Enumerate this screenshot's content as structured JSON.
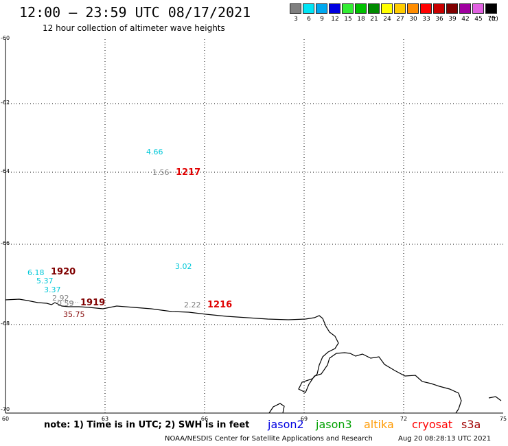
{
  "header": {
    "title": "12:00 – 23:59 UTC 08/17/2021",
    "subtitle": "12 hour collection of altimeter wave heights"
  },
  "legend": {
    "unit": "(ft)",
    "items": [
      {
        "label": "3",
        "color": "#808080"
      },
      {
        "label": "6",
        "color": "#00e5f5"
      },
      {
        "label": "9",
        "color": "#00a8f0"
      },
      {
        "label": "12",
        "color": "#0000e0"
      },
      {
        "label": "15",
        "color": "#33ee33"
      },
      {
        "label": "18",
        "color": "#00c000"
      },
      {
        "label": "21",
        "color": "#008a00"
      },
      {
        "label": "24",
        "color": "#ffff00"
      },
      {
        "label": "27",
        "color": "#ffcc00"
      },
      {
        "label": "30",
        "color": "#ff8c00"
      },
      {
        "label": "33",
        "color": "#ff0000"
      },
      {
        "label": "36",
        "color": "#c80000"
      },
      {
        "label": "39",
        "color": "#800000"
      },
      {
        "label": "42",
        "color": "#a000a0"
      },
      {
        "label": "45",
        "color": "#e060e0"
      },
      {
        "label": "70",
        "color": "#000000"
      }
    ]
  },
  "axes": {
    "lat_labels": [
      "-60",
      "-62",
      "-64",
      "-66",
      "-68",
      "-70"
    ],
    "lon_labels": [
      "60",
      "63",
      "66",
      "69",
      "72",
      "75"
    ]
  },
  "observations": {
    "wave_heights": [
      {
        "text": "4.66",
        "color": "#00c8d8"
      },
      {
        "text": "1.56",
        "color": "#808080"
      },
      {
        "text": "3.02",
        "color": "#00c8d8"
      },
      {
        "text": "6.18",
        "color": "#00c8d8"
      },
      {
        "text": "5.37",
        "color": "#00c8d8"
      },
      {
        "text": "3.37",
        "color": "#00c8d8"
      },
      {
        "text": "2.92",
        "color": "#808080"
      },
      {
        "text": "0.59",
        "color": "#808080"
      },
      {
        "text": "35.75",
        "color": "#800000"
      },
      {
        "text": "2.22",
        "color": "#808080"
      }
    ],
    "times": [
      {
        "text": "1217",
        "color": "#e00000"
      },
      {
        "text": "1920",
        "color": "#800000"
      },
      {
        "text": "1919",
        "color": "#800000"
      },
      {
        "text": "1216",
        "color": "#e00000"
      }
    ]
  },
  "footer": {
    "note": "note: 1) Time is in UTC; 2) SWH is in feet",
    "satellites": [
      {
        "name": "jason2",
        "color": "#0000e0"
      },
      {
        "name": "jason3",
        "color": "#00a000"
      },
      {
        "name": "altika",
        "color": "#ff9900"
      },
      {
        "name": "cryosat",
        "color": "#ff0000"
      },
      {
        "name": "s3a",
        "color": "#a00000"
      }
    ],
    "credit": "NOAA/NESDIS Center for Satellite Applications and Research",
    "timestamp": "Aug 20 08:28:13 UTC 2021"
  }
}
